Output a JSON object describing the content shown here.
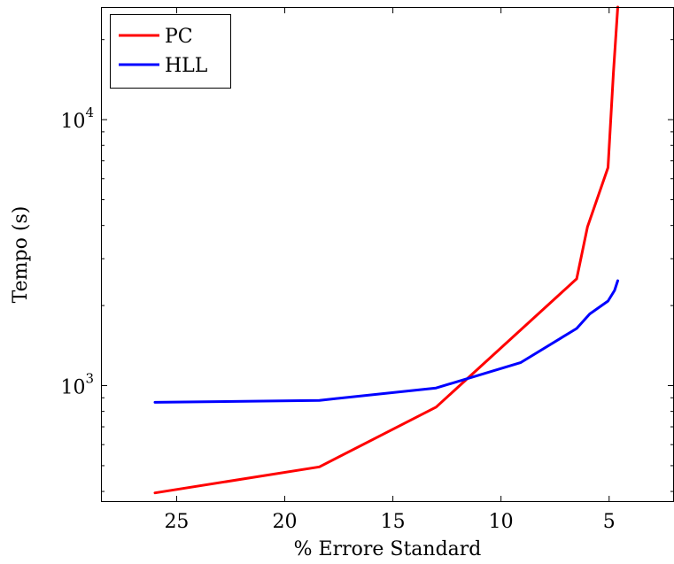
{
  "chart_data": {
    "type": "line",
    "title": "",
    "xlabel": "% Errore Standard",
    "ylabel": "Tempo (s)",
    "x_reversed": true,
    "xlim": [
      28.5,
      2.0
    ],
    "xticks": [
      25,
      20,
      15,
      10,
      5
    ],
    "xtick_labels": [
      "25",
      "20",
      "15",
      "10",
      "5"
    ],
    "y_scale": "log",
    "ylim": [
      365,
      26500
    ],
    "yticks_major": [
      1000,
      10000
    ],
    "ytick_labels": [
      {
        "base": "10",
        "exp": "3"
      },
      {
        "base": "10",
        "exp": "4"
      }
    ],
    "legend_position": "top-left",
    "grid": false,
    "series": [
      {
        "name": "PC",
        "color": "#ff0000",
        "x": [
          26,
          18.4,
          13,
          6.5,
          6,
          5.05,
          4.8,
          4.6
        ],
        "y": [
          395,
          495,
          830,
          2520,
          3950,
          6600,
          15000,
          26500
        ]
      },
      {
        "name": "HLL",
        "color": "#0000ff",
        "x": [
          26,
          18.4,
          13,
          9.1,
          6.5,
          5.9,
          5.05,
          4.75,
          4.6
        ],
        "y": [
          865,
          880,
          980,
          1220,
          1640,
          1860,
          2080,
          2280,
          2480
        ]
      }
    ]
  }
}
